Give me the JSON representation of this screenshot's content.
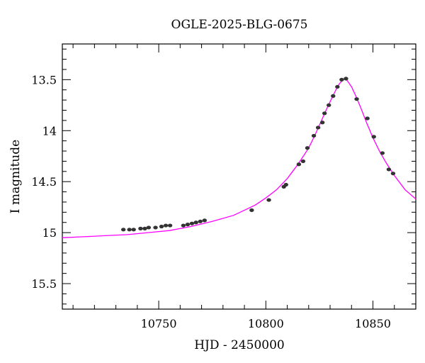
{
  "chart_data": {
    "type": "scatter",
    "title": "OGLE-2025-BLG-0675",
    "xlabel": "HJD - 2450000",
    "ylabel": "I magnitude",
    "xlim": [
      10705,
      10870
    ],
    "ylim": [
      15.75,
      13.15
    ],
    "y_inverted": true,
    "x_ticks": [
      10750,
      10800,
      10850
    ],
    "x_tick_labels": [
      "10750",
      "10800",
      "10850"
    ],
    "y_ticks": [
      13.5,
      14,
      14.5,
      15,
      15.5
    ],
    "y_tick_labels": [
      "13.5",
      "14",
      "14.5",
      "15",
      "15.5"
    ],
    "grid": false,
    "colors": {
      "points": "#333333",
      "model": "#ff00ff",
      "axes": "#000000"
    },
    "series": [
      {
        "kind": "points",
        "x": [
          10733.5,
          10736.3,
          10738.3,
          10741.5,
          10743.5,
          10745.3,
          10748.5,
          10751.3,
          10753.3,
          10755.3,
          10761.5,
          10763.5,
          10765.5,
          10767.4,
          10769.4,
          10771.4,
          10793.4,
          10801.4,
          10808.4,
          10809.4,
          10815.4,
          10817.4,
          10819.4,
          10822.4,
          10824.4,
          10826.4,
          10827.4,
          10829.4,
          10831.4,
          10833.4,
          10835.4,
          10837.4,
          10842.4,
          10847.4,
          10850.4,
          10854.4,
          10857.4,
          10859.4
        ],
        "y": [
          14.97,
          14.97,
          14.97,
          14.96,
          14.96,
          14.95,
          14.95,
          14.94,
          14.93,
          14.93,
          14.93,
          14.92,
          14.91,
          14.9,
          14.89,
          14.88,
          14.78,
          14.68,
          14.55,
          14.53,
          14.33,
          14.3,
          14.17,
          14.05,
          13.97,
          13.92,
          13.83,
          13.75,
          13.66,
          13.57,
          13.5,
          13.49,
          13.69,
          13.88,
          14.06,
          14.22,
          14.38,
          14.42
        ]
      },
      {
        "kind": "model",
        "x": [
          10705,
          10715,
          10725,
          10735,
          10745,
          10755,
          10765,
          10775,
          10785,
          10795,
          10800,
          10805,
          10810,
          10815,
          10820,
          10823,
          10826,
          10829,
          10832,
          10834,
          10836,
          10837,
          10838,
          10840,
          10842,
          10844,
          10847,
          10850,
          10853,
          10856,
          10860,
          10865,
          10870
        ],
        "y": [
          15.05,
          15.04,
          15.03,
          15.02,
          15.0,
          14.98,
          14.94,
          14.89,
          14.83,
          14.73,
          14.66,
          14.58,
          14.47,
          14.33,
          14.17,
          14.04,
          13.9,
          13.76,
          13.63,
          13.55,
          13.5,
          13.49,
          13.51,
          13.57,
          13.66,
          13.76,
          13.92,
          14.07,
          14.2,
          14.31,
          14.44,
          14.58,
          14.67
        ]
      }
    ]
  }
}
